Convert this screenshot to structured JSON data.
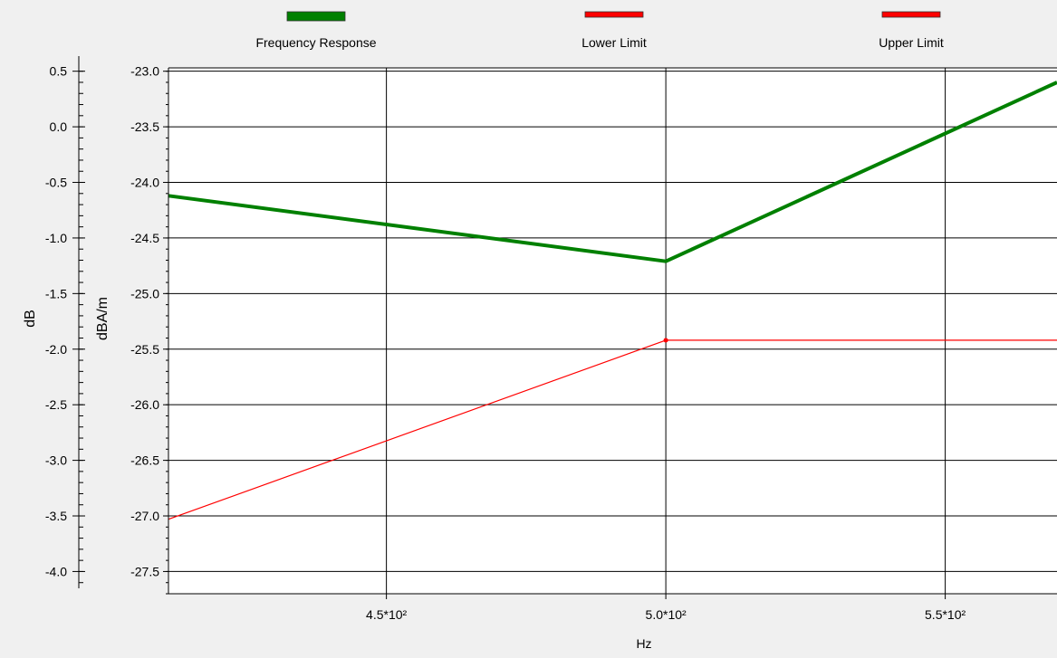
{
  "chart_data": {
    "type": "line",
    "xlabel": "Hz",
    "ylabel_left": "dB",
    "ylabel_right": "dBA/m",
    "xlim": [
      411,
      570
    ],
    "ylim": [
      -27.7,
      -22.97
    ],
    "ylim_db": [
      -4.2,
      0.53
    ],
    "x_ticks": [
      {
        "value": 450,
        "label": "4.5*10²"
      },
      {
        "value": 500,
        "label": "5.0*10²"
      },
      {
        "value": 550,
        "label": "5.5*10²"
      }
    ],
    "y_ticks": [
      {
        "value": -23.0,
        "label": "-23.0"
      },
      {
        "value": -23.5,
        "label": "-23.5"
      },
      {
        "value": -24.0,
        "label": "-24.0"
      },
      {
        "value": -24.5,
        "label": "-24.5"
      },
      {
        "value": -25.0,
        "label": "-25.0"
      },
      {
        "value": -25.5,
        "label": "-25.5"
      },
      {
        "value": -26.0,
        "label": "-26.0"
      },
      {
        "value": -26.5,
        "label": "-26.5"
      },
      {
        "value": -27.0,
        "label": "-27.0"
      },
      {
        "value": -27.5,
        "label": "-27.5"
      }
    ],
    "y_ticks_db": [
      {
        "value": 0.5,
        "label": "0.5"
      },
      {
        "value": 0.0,
        "label": "0.0"
      },
      {
        "value": -0.5,
        "label": "-0.5"
      },
      {
        "value": -1.0,
        "label": "-1.0"
      },
      {
        "value": -1.5,
        "label": "-1.5"
      },
      {
        "value": -2.0,
        "label": "-2.0"
      },
      {
        "value": -2.5,
        "label": "-2.5"
      },
      {
        "value": -3.0,
        "label": "-3.0"
      },
      {
        "value": -3.5,
        "label": "-3.5"
      },
      {
        "value": -4.0,
        "label": "-4.0"
      }
    ],
    "grid": true,
    "legend_position": "top",
    "series": [
      {
        "name": "Frequency Response",
        "color": "#008000",
        "x": [
          411,
          500,
          570
        ],
        "y": [
          -24.12,
          -24.71,
          -23.1
        ]
      },
      {
        "name": "Lower Limit",
        "color": "#ff0000",
        "x": [
          411,
          500,
          570
        ],
        "y": [
          -27.03,
          -25.42,
          -25.42
        ]
      },
      {
        "name": "Upper Limit",
        "color": "#ff0000",
        "x": [],
        "y": []
      }
    ]
  }
}
